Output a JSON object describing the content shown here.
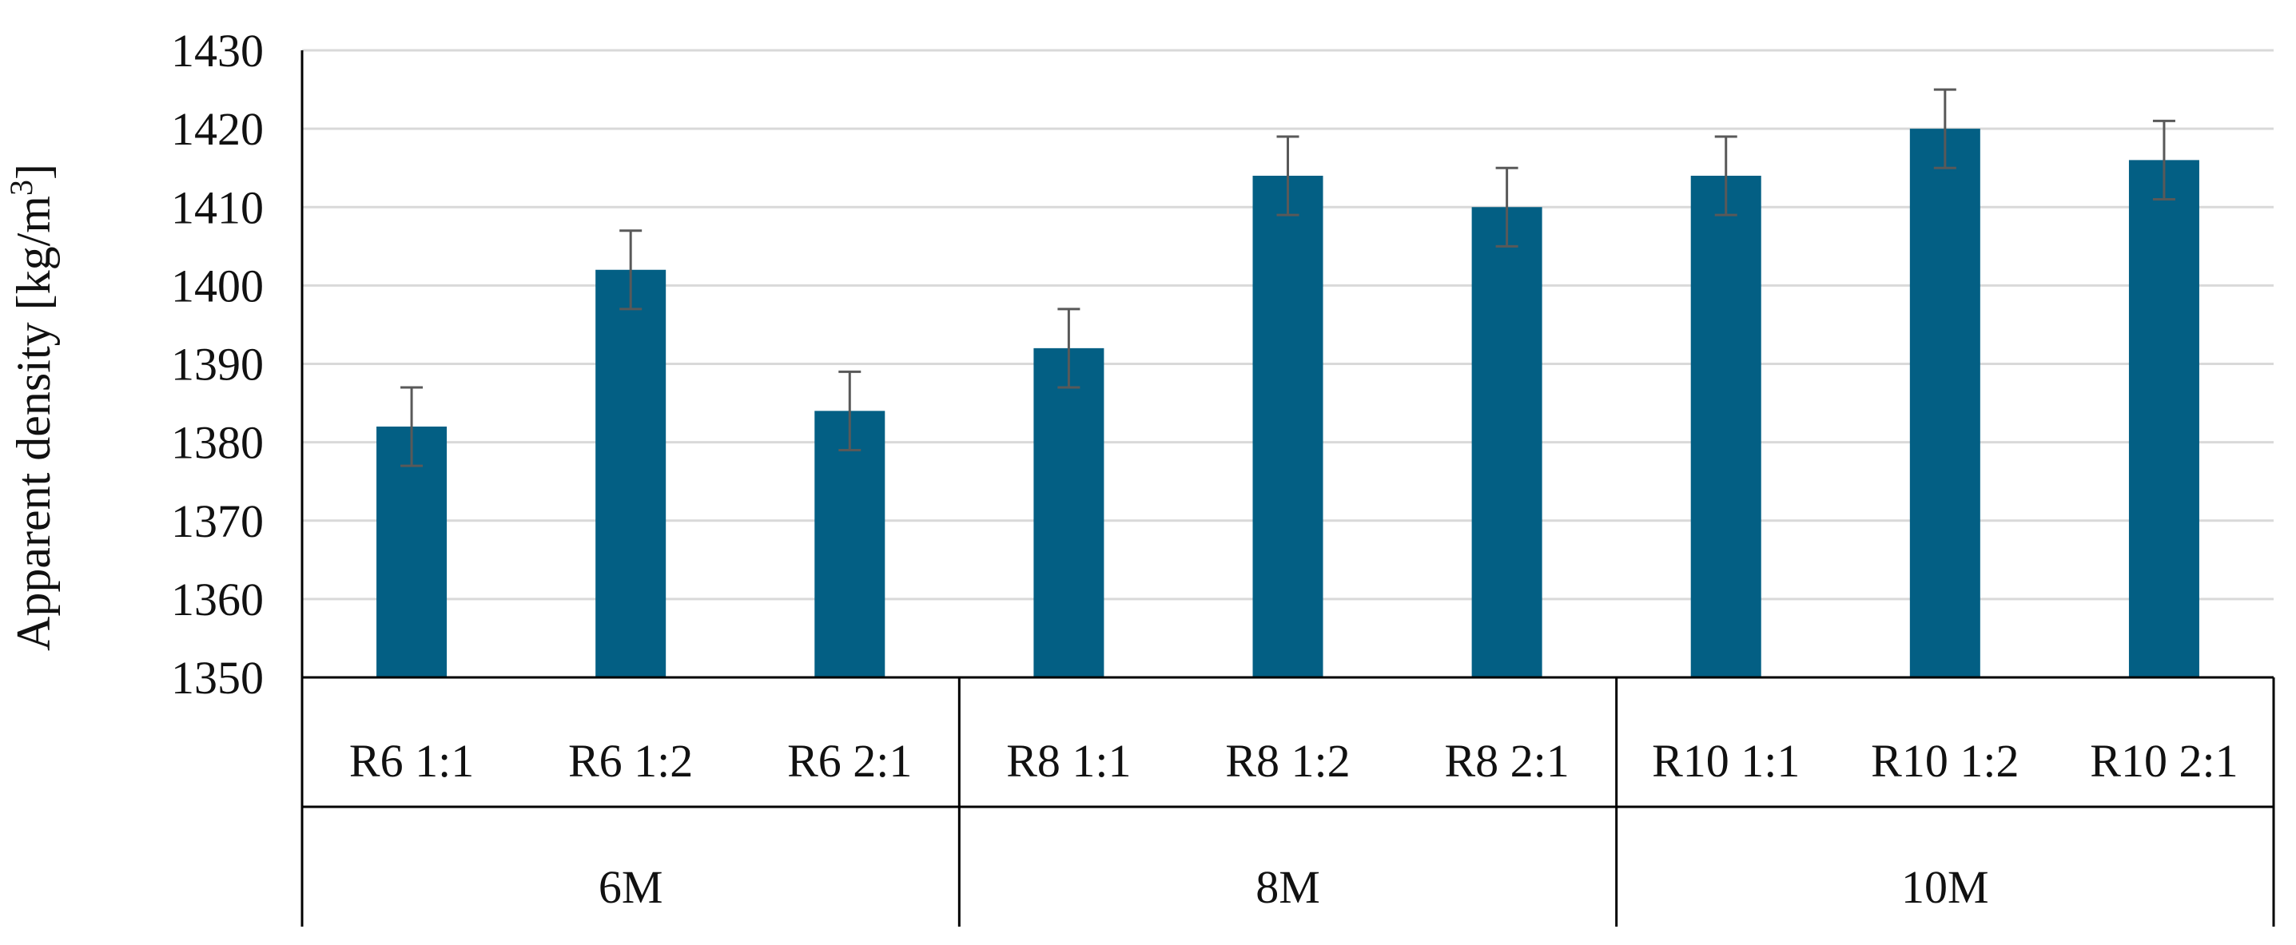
{
  "chart_data": {
    "type": "bar",
    "title": "",
    "ylabel": "Apparent density [kg/m",
    "ylabel_sup": "3",
    "ylabel_close": "]",
    "ylim": [
      1350,
      1430
    ],
    "yticks": [
      1350,
      1360,
      1370,
      1380,
      1390,
      1400,
      1410,
      1420,
      1430
    ],
    "grid": true,
    "categories": [
      "R6 1:1",
      "R6 1:2",
      "R6 2:1",
      "R8 1:1",
      "R8 1:2",
      "R8 2:1",
      "R10 1:1",
      "R10 1:2",
      "R10 2:1"
    ],
    "groups": [
      {
        "label": "6M",
        "count": 3
      },
      {
        "label": "8M",
        "count": 3
      },
      {
        "label": "10M",
        "count": 3
      }
    ],
    "values": [
      1382,
      1402,
      1384,
      1392,
      1414,
      1410,
      1414,
      1420,
      1416
    ],
    "error": [
      5,
      5,
      5,
      5,
      5,
      5,
      5,
      5,
      5
    ],
    "colors": {
      "bar": "#035F84",
      "error": "#595959",
      "grid": "#D9D9D9",
      "axis": "#000000"
    }
  }
}
